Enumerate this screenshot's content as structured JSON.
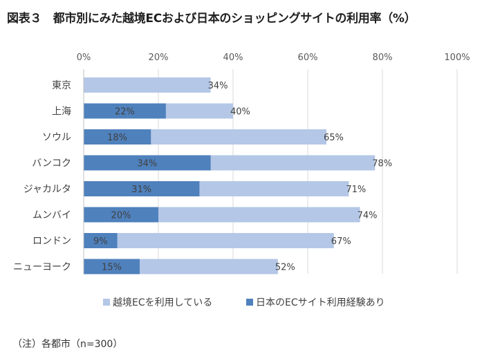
{
  "chart_data": {
    "type": "bar",
    "orientation": "horizontal",
    "title": "図表３　都市別にみた越境ECおよび日本のショッピングサイトの利用率（%）",
    "categories": [
      "東京",
      "上海",
      "ソウル",
      "バンコク",
      "ジャカルタ",
      "ムンバイ",
      "ロンドン",
      "ニューヨーク"
    ],
    "series": [
      {
        "name": "越境ECを利用している",
        "color": "#b4c7e7",
        "values": [
          34,
          40,
          65,
          78,
          71,
          74,
          67,
          52
        ],
        "labels": [
          "34%",
          "40%",
          "65%",
          "78%",
          "71%",
          "74%",
          "67%",
          "52%"
        ]
      },
      {
        "name": "日本のECサイト利用経験あり",
        "color": "#4f81bd",
        "values": [
          null,
          22,
          18,
          34,
          31,
          20,
          9,
          15
        ],
        "labels": [
          null,
          "22%",
          "18%",
          "34%",
          "31%",
          "20%",
          "9%",
          "15%"
        ]
      }
    ],
    "xlim": [
      0,
      100
    ],
    "x_ticks": [
      0,
      20,
      40,
      60,
      80,
      100
    ],
    "x_tick_labels": [
      "0%",
      "20%",
      "40%",
      "60%",
      "80%",
      "100%"
    ],
    "xlabel": "",
    "ylabel": "",
    "grid": true,
    "legend_position": "bottom",
    "note": "（注）各都市（n=300）"
  }
}
